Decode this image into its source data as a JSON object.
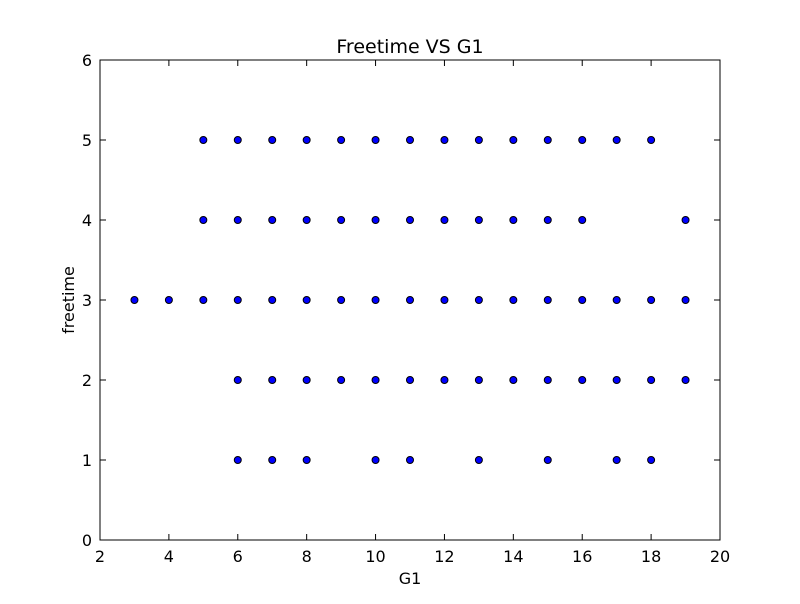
{
  "chart_data": {
    "type": "scatter",
    "title": "Freetime VS G1",
    "xlabel": "G1",
    "ylabel": "freetime",
    "xlim": [
      2,
      20
    ],
    "ylim": [
      0,
      6
    ],
    "xticks": [
      2,
      4,
      6,
      8,
      10,
      12,
      14,
      16,
      18,
      20
    ],
    "yticks": [
      0,
      1,
      2,
      3,
      4,
      5,
      6
    ],
    "grid": false,
    "marker_color": "#0000ff",
    "marker_edge_color": "#000000",
    "points": [
      {
        "x": 5,
        "y": 5
      },
      {
        "x": 6,
        "y": 5
      },
      {
        "x": 7,
        "y": 5
      },
      {
        "x": 8,
        "y": 5
      },
      {
        "x": 9,
        "y": 5
      },
      {
        "x": 10,
        "y": 5
      },
      {
        "x": 11,
        "y": 5
      },
      {
        "x": 12,
        "y": 5
      },
      {
        "x": 13,
        "y": 5
      },
      {
        "x": 14,
        "y": 5
      },
      {
        "x": 15,
        "y": 5
      },
      {
        "x": 16,
        "y": 5
      },
      {
        "x": 17,
        "y": 5
      },
      {
        "x": 18,
        "y": 5
      },
      {
        "x": 5,
        "y": 4
      },
      {
        "x": 6,
        "y": 4
      },
      {
        "x": 7,
        "y": 4
      },
      {
        "x": 8,
        "y": 4
      },
      {
        "x": 9,
        "y": 4
      },
      {
        "x": 10,
        "y": 4
      },
      {
        "x": 11,
        "y": 4
      },
      {
        "x": 12,
        "y": 4
      },
      {
        "x": 13,
        "y": 4
      },
      {
        "x": 14,
        "y": 4
      },
      {
        "x": 15,
        "y": 4
      },
      {
        "x": 16,
        "y": 4
      },
      {
        "x": 19,
        "y": 4
      },
      {
        "x": 3,
        "y": 3
      },
      {
        "x": 4,
        "y": 3
      },
      {
        "x": 5,
        "y": 3
      },
      {
        "x": 6,
        "y": 3
      },
      {
        "x": 7,
        "y": 3
      },
      {
        "x": 8,
        "y": 3
      },
      {
        "x": 9,
        "y": 3
      },
      {
        "x": 10,
        "y": 3
      },
      {
        "x": 11,
        "y": 3
      },
      {
        "x": 12,
        "y": 3
      },
      {
        "x": 13,
        "y": 3
      },
      {
        "x": 14,
        "y": 3
      },
      {
        "x": 15,
        "y": 3
      },
      {
        "x": 16,
        "y": 3
      },
      {
        "x": 17,
        "y": 3
      },
      {
        "x": 18,
        "y": 3
      },
      {
        "x": 19,
        "y": 3
      },
      {
        "x": 6,
        "y": 2
      },
      {
        "x": 7,
        "y": 2
      },
      {
        "x": 8,
        "y": 2
      },
      {
        "x": 9,
        "y": 2
      },
      {
        "x": 10,
        "y": 2
      },
      {
        "x": 11,
        "y": 2
      },
      {
        "x": 12,
        "y": 2
      },
      {
        "x": 13,
        "y": 2
      },
      {
        "x": 14,
        "y": 2
      },
      {
        "x": 15,
        "y": 2
      },
      {
        "x": 16,
        "y": 2
      },
      {
        "x": 17,
        "y": 2
      },
      {
        "x": 18,
        "y": 2
      },
      {
        "x": 19,
        "y": 2
      },
      {
        "x": 6,
        "y": 1
      },
      {
        "x": 7,
        "y": 1
      },
      {
        "x": 8,
        "y": 1
      },
      {
        "x": 10,
        "y": 1
      },
      {
        "x": 11,
        "y": 1
      },
      {
        "x": 13,
        "y": 1
      },
      {
        "x": 15,
        "y": 1
      },
      {
        "x": 17,
        "y": 1
      },
      {
        "x": 18,
        "y": 1
      }
    ]
  }
}
